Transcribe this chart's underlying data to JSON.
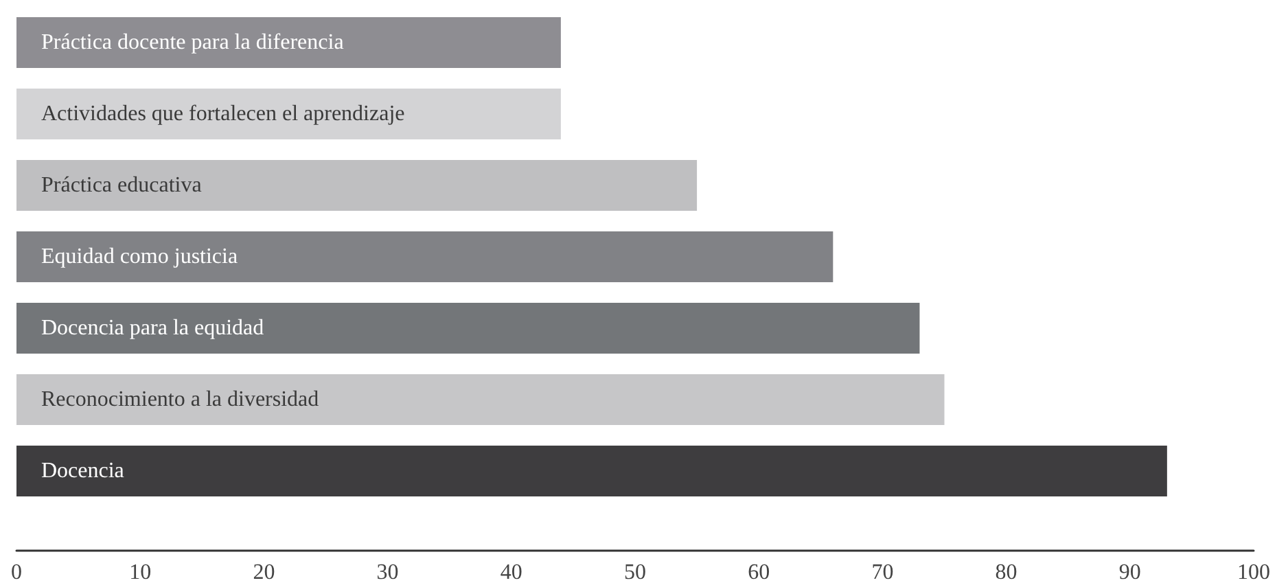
{
  "chart_data": {
    "type": "bar",
    "orientation": "horizontal",
    "categories": [
      "Práctica docente para la diferencia",
      "Actividades que fortalecen el aprendizaje",
      "Práctica educativa",
      "Equidad como justicia",
      "Docencia para la equidad",
      "Reconocimiento a la diversidad",
      "Docencia"
    ],
    "values": [
      44,
      44,
      55,
      66,
      73,
      75,
      93
    ],
    "colors": [
      "#8e8d92",
      "#d3d3d5",
      "#bfbfc1",
      "#818286",
      "#737679",
      "#c6c6c8",
      "#3e3d3f"
    ],
    "xlim": [
      0,
      100
    ],
    "xticks": [
      0,
      10,
      20,
      30,
      40,
      50,
      60,
      70,
      80,
      90,
      100
    ],
    "grid": false
  }
}
